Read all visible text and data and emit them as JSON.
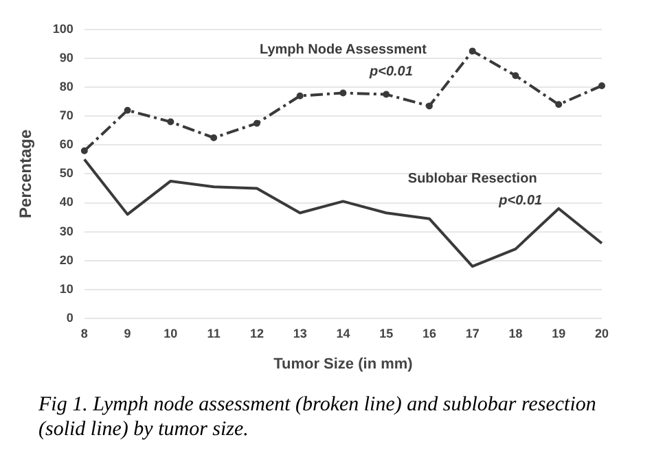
{
  "chart_data": {
    "type": "line",
    "xlabel": "Tumor Size (in mm)",
    "ylabel": "Percentage",
    "categories": [
      "8",
      "9",
      "10",
      "11",
      "12",
      "13",
      "14",
      "15",
      "16",
      "17",
      "18",
      "19",
      "20"
    ],
    "series": [
      {
        "name": "Lymph Node Assessment",
        "color": "#3a3a3a",
        "line_style": "dashed",
        "marker": "circle",
        "values": [
          58,
          72,
          68,
          62.5,
          67.5,
          77,
          78,
          77.5,
          73.5,
          92.5,
          84,
          74,
          80.5
        ]
      },
      {
        "name": "Sublobar Resection",
        "color": "#3a3a3a",
        "line_style": "solid",
        "marker": "none",
        "values": [
          55,
          36,
          47.5,
          45.5,
          45,
          36.5,
          40.5,
          36.5,
          34.5,
          18,
          24,
          38,
          26
        ]
      }
    ],
    "ylim": [
      0,
      100
    ],
    "yticks": [
      0,
      10,
      20,
      30,
      40,
      50,
      60,
      70,
      80,
      90,
      100
    ],
    "grid": "y",
    "legend": false,
    "annotations": [
      "p<0.01",
      "p<0.01",
      "Fig 1.  Lymph node assessment (broken line) and sublobar resection (solid line) by tumor size."
    ]
  }
}
